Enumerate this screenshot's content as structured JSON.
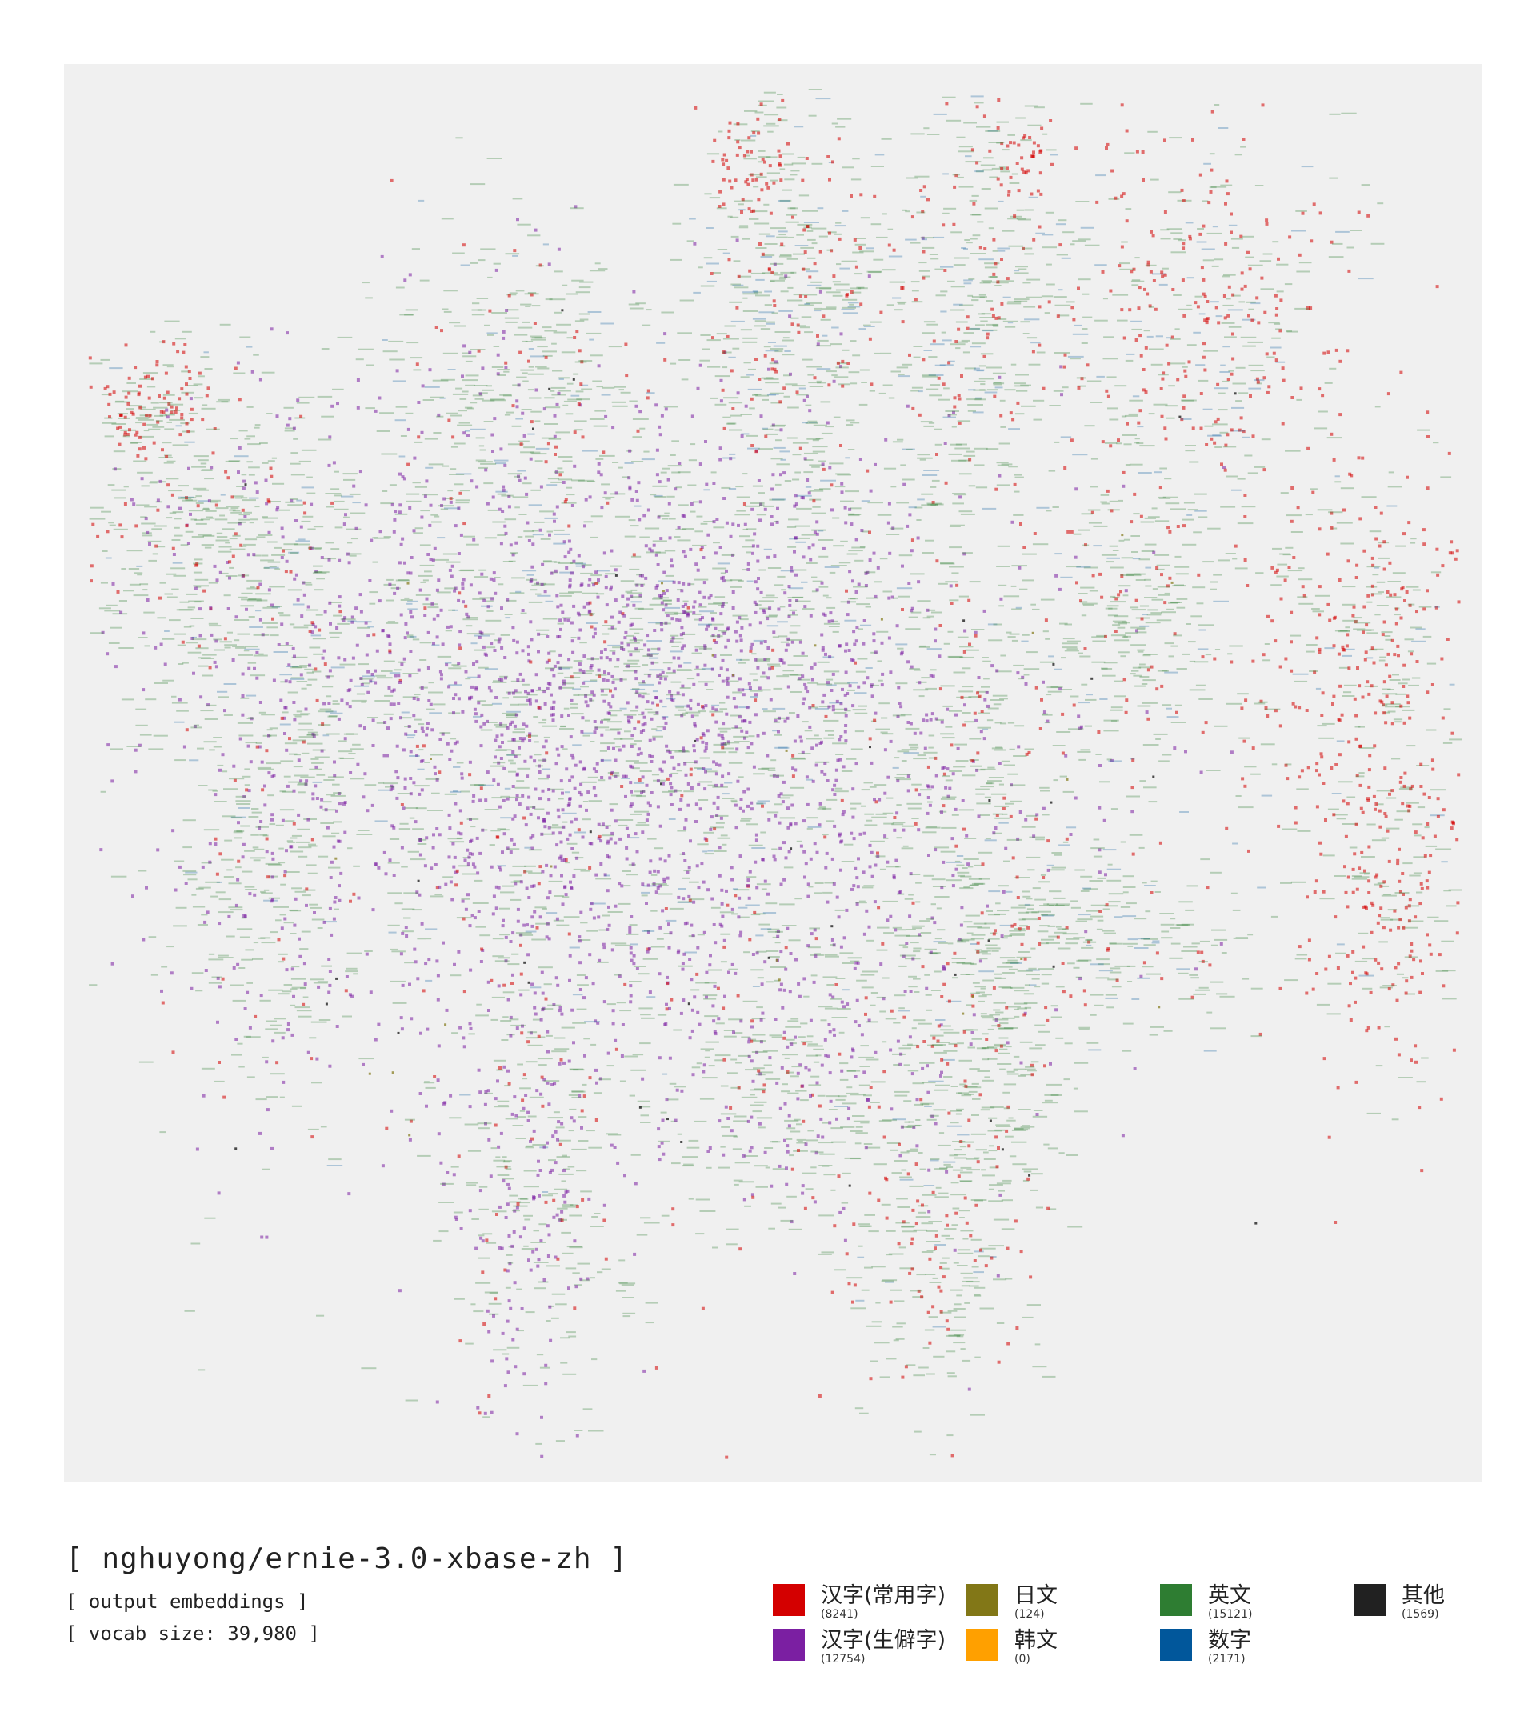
{
  "header": {
    "title": "[ nghuyong/ernie-3.0-xbase-zh ]",
    "subtitle": "[ output embeddings ]",
    "vocab": "[ vocab size: 39,980 ]"
  },
  "legend": [
    {
      "label": "汉字(常用字)",
      "count": "(8241)",
      "color": "#d40000"
    },
    {
      "label": "汉字(生僻字)",
      "count": "(12754)",
      "color": "#7b1fa2"
    },
    {
      "label": "日文",
      "count": "(124)",
      "color": "#827717"
    },
    {
      "label": "韩文",
      "count": "(0)",
      "color": "#ffa000"
    },
    {
      "label": "英文",
      "count": "(15121)",
      "color": "#2e7d32"
    },
    {
      "label": "数字",
      "count": "(2171)",
      "color": "#01579b"
    },
    {
      "label": "其他",
      "count": "(1569)",
      "color": "#212121"
    }
  ],
  "chart_data": {
    "type": "scatter",
    "title": "[ nghuyong/ernie-3.0-xbase-zh ]",
    "subtitle": "[ output embeddings ]",
    "xlabel": "",
    "ylabel": "",
    "grid": false,
    "legend_position": "bottom-right",
    "background": "#f0f0f0",
    "series": [
      {
        "name": "汉字(常用字)",
        "count": 8241,
        "color": "#d40000"
      },
      {
        "name": "汉字(生僻字)",
        "count": 12754,
        "color": "#7b1fa2"
      },
      {
        "name": "日文",
        "count": 124,
        "color": "#827717"
      },
      {
        "name": "韩文",
        "count": 0,
        "color": "#ffa000"
      },
      {
        "name": "英文",
        "count": 15121,
        "color": "#2e7d32"
      },
      {
        "name": "数字",
        "count": 2171,
        "color": "#01579b"
      },
      {
        "name": "其他",
        "count": 1569,
        "color": "#212121"
      }
    ]
  }
}
